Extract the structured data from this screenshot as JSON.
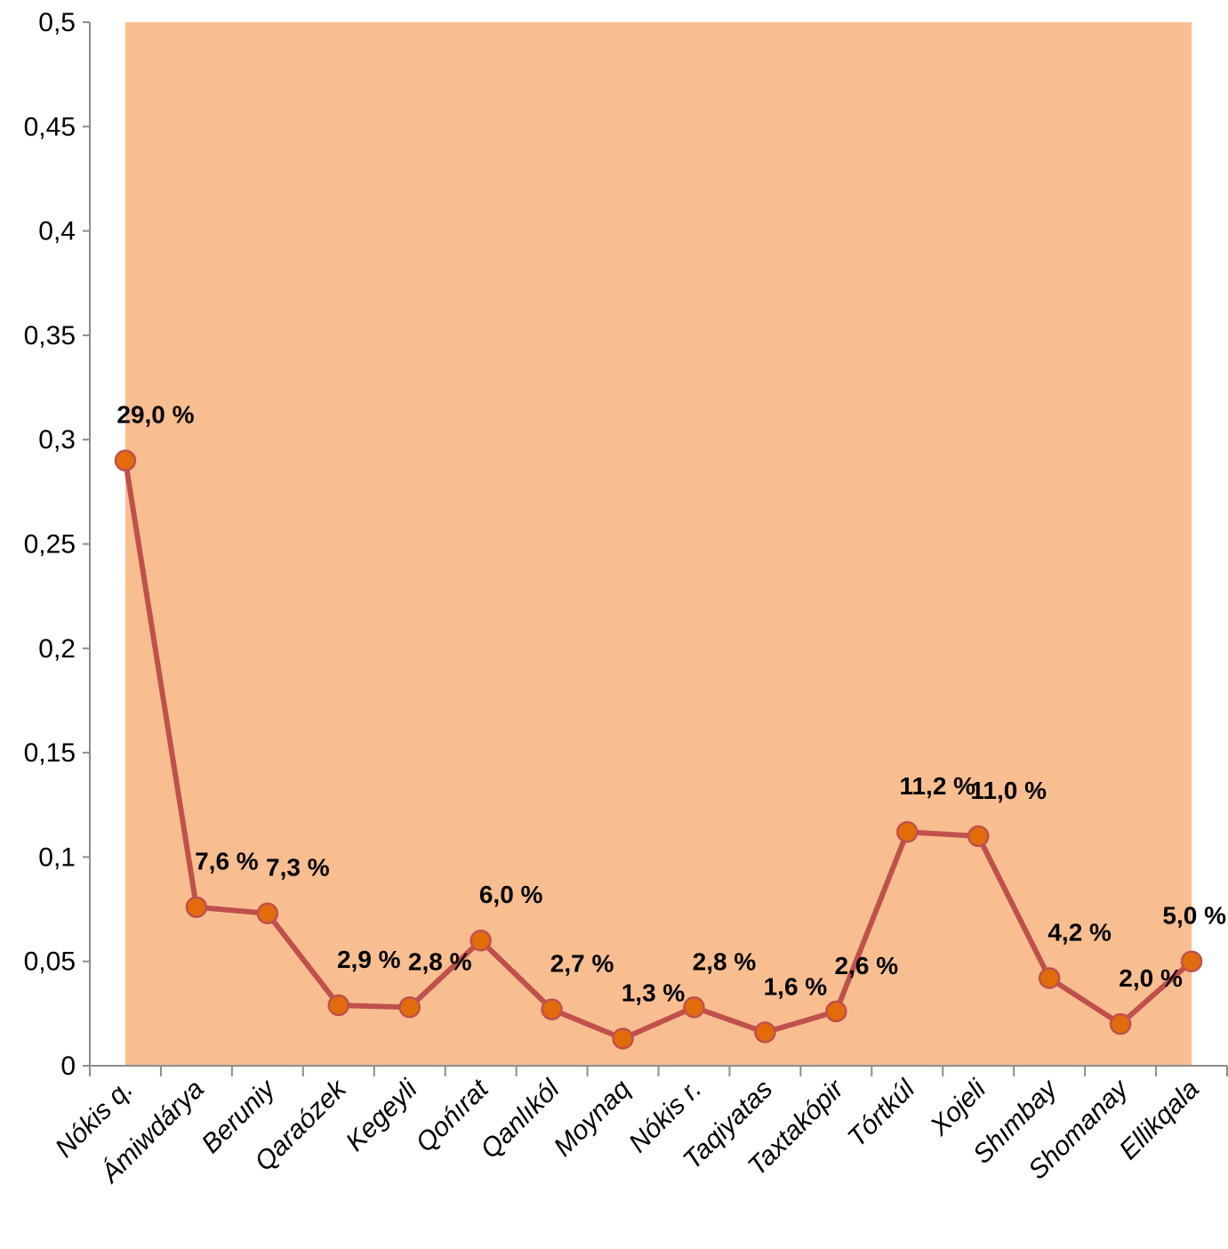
{
  "chart_data": {
    "type": "line",
    "title": "",
    "xlabel": "",
    "ylabel": "",
    "ylim": [
      0,
      0.5
    ],
    "yticks": [
      "0",
      "0,05",
      "0,1",
      "0,15",
      "0,2",
      "0,25",
      "0,3",
      "0,35",
      "0,4",
      "0,45",
      "0,5"
    ],
    "categories": [
      "Nókis q.",
      "Ámiwdárya",
      "Beruniy",
      "Qaraózek",
      "Kegeyli",
      "Qońırat",
      "Qanlıkól",
      "Moynaq",
      "Nókis r.",
      "Taqiyatas",
      "Taxtakópir",
      "Tórtkúl",
      "Xojeli",
      "Shımbay",
      "Shomanay",
      "Ellikqala"
    ],
    "values": [
      0.29,
      0.076,
      0.073,
      0.029,
      0.028,
      0.06,
      0.027,
      0.013,
      0.028,
      0.016,
      0.026,
      0.112,
      0.11,
      0.042,
      0.02,
      0.05
    ],
    "data_labels": [
      "29,0 %",
      "7,6 %",
      "7,3 %",
      "2,9 %",
      "2,8 %",
      "6,0 %",
      "2,7 %",
      "1,3 %",
      "2,8 %",
      "1,6 %",
      "2,6 %",
      "11,2 %",
      "11,0 %",
      "4,2 %",
      "2,0 %",
      "5,0 %"
    ],
    "grid": false,
    "legend": "none",
    "colors": {
      "plot_background": "#f9be90",
      "line": "#c0504d",
      "marker_fill": "#e36c0a",
      "marker_stroke": "#c0504d",
      "axis": "#8c8c8c"
    }
  }
}
